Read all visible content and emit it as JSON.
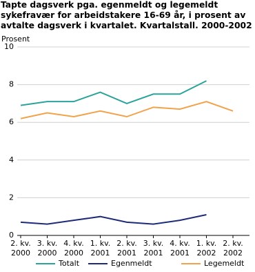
{
  "chart_data": {
    "type": "line",
    "title": "Tapte dagsverk pga. egenmeldt og legemeldt sykefravær for arbeidstakere 16-69 år, i prosent av avtalte dagsverk i kvartalet. Kvartalstall. 2000-2002",
    "y_label": "Prosent",
    "categories": [
      "2. kv.\n2000",
      "3. kv.\n2000",
      "4. kv.\n2000",
      "1. kv.\n2001",
      "2. kv.\n2001",
      "3. kv.\n2001",
      "4. kv.\n2001",
      "1. kv.\n2002",
      "2. kv.\n2002"
    ],
    "series": [
      {
        "name": "Totalt",
        "color": "#2ba39b",
        "values": [
          6.9,
          7.1,
          7.1,
          7.6,
          7.0,
          7.5,
          7.5,
          8.2,
          null
        ]
      },
      {
        "name": "Egenmeldt",
        "color": "#1c2a78",
        "values": [
          0.7,
          0.6,
          0.8,
          1.0,
          0.7,
          0.6,
          0.8,
          1.1,
          null
        ]
      },
      {
        "name": "Legemeldt",
        "color": "#f2a24a",
        "values": [
          6.2,
          6.5,
          6.3,
          6.6,
          6.3,
          6.8,
          6.7,
          7.1,
          6.6
        ]
      }
    ],
    "ylim": [
      0,
      10
    ],
    "yticks": [
      0,
      2,
      4,
      6,
      8,
      10
    ],
    "grid": true
  }
}
